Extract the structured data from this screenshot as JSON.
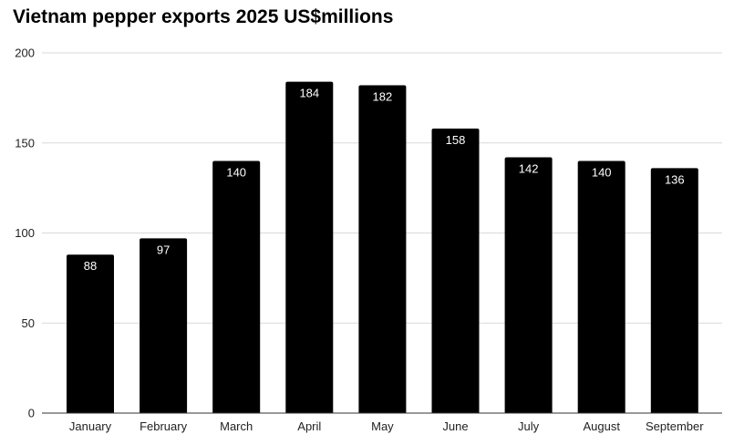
{
  "chart_data": {
    "type": "bar",
    "title": "Vietnam pepper exports 2025 US$millions",
    "xlabel": "",
    "ylabel": "",
    "ylim": [
      0,
      200
    ],
    "yticks": [
      0,
      50,
      100,
      150,
      200
    ],
    "grid": true,
    "categories": [
      "January",
      "February",
      "March",
      "April",
      "May",
      "June",
      "July",
      "August",
      "September"
    ],
    "values": [
      88,
      97,
      140,
      184,
      182,
      158,
      142,
      140,
      136
    ],
    "data_labels": [
      "88",
      "97",
      "140",
      "184",
      "182",
      "158",
      "142",
      "140",
      "136"
    ],
    "bar_color": "#000000",
    "data_label_color": "#ffffff",
    "grid_color": "#d9d9d9"
  }
}
